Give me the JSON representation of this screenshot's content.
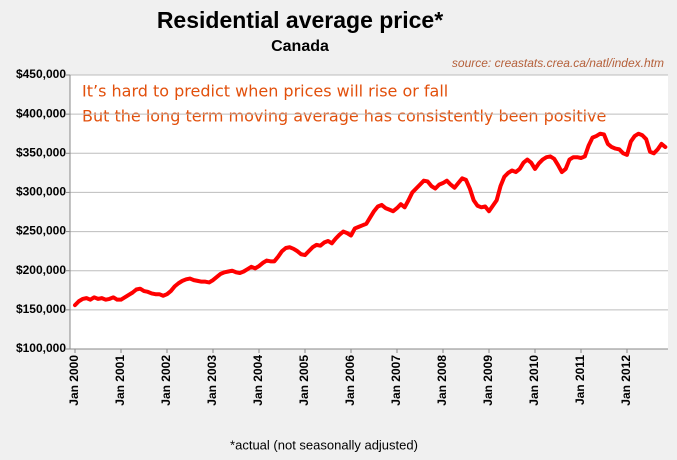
{
  "chart_data": {
    "type": "line",
    "title": "Residential average price*",
    "subtitle": "Canada",
    "source": "source: creastats.crea.ca/natl/index.htm",
    "annotations": [
      "It’s hard to predict when prices will rise or fall",
      "But the long term moving average has consistently been positive"
    ],
    "footnote": "*actual (not seasonally adjusted)",
    "color": "#ff0000",
    "grid": true,
    "categories": [
      "Jan 2000",
      null,
      null,
      null,
      null,
      null,
      null,
      null,
      null,
      null,
      null,
      null,
      "Jan 2001",
      null,
      null,
      null,
      null,
      null,
      null,
      null,
      null,
      null,
      null,
      null,
      "Jan 2002",
      null,
      null,
      null,
      null,
      null,
      null,
      null,
      null,
      null,
      null,
      null,
      "Jan 2003",
      null,
      null,
      null,
      null,
      null,
      null,
      null,
      null,
      null,
      null,
      null,
      "Jan 2004",
      null,
      null,
      null,
      null,
      null,
      null,
      null,
      null,
      null,
      null,
      null,
      "Jan 2005",
      null,
      null,
      null,
      null,
      null,
      null,
      null,
      null,
      null,
      null,
      null,
      "Jan 2006",
      null,
      null,
      null,
      null,
      null,
      null,
      null,
      null,
      null,
      null,
      null,
      "Jan 2007",
      null,
      null,
      null,
      null,
      null,
      null,
      null,
      null,
      null,
      null,
      null,
      "Jan 2008",
      null,
      null,
      null,
      null,
      null,
      null,
      null,
      null,
      null,
      null,
      null,
      "Jan 2009",
      null,
      null,
      null,
      null,
      null,
      null,
      null,
      null,
      null,
      null,
      null,
      "Jan 2010",
      null,
      null,
      null,
      null,
      null,
      null,
      null,
      null,
      null,
      null,
      null,
      "Jan 2011",
      null,
      null,
      null,
      null,
      null,
      null,
      null,
      null,
      null,
      null,
      null,
      "Jan 2012",
      null,
      null,
      null,
      null,
      null,
      null,
      null,
      null,
      null,
      null
    ],
    "values": [
      156000,
      161000,
      164000,
      165000,
      163000,
      166000,
      164000,
      165000,
      163000,
      164000,
      166000,
      163000,
      163000,
      166000,
      169000,
      172000,
      176000,
      177000,
      174000,
      173000,
      171000,
      170000,
      170000,
      168000,
      170000,
      174000,
      180000,
      184000,
      187000,
      189000,
      190000,
      188000,
      187000,
      186000,
      186000,
      185000,
      188000,
      192000,
      196000,
      198000,
      199000,
      200000,
      198000,
      197000,
      199000,
      202000,
      205000,
      203000,
      206000,
      210000,
      213000,
      212000,
      212000,
      218000,
      225000,
      229000,
      230000,
      228000,
      225000,
      221000,
      220000,
      225000,
      230000,
      233000,
      232000,
      236000,
      238000,
      235000,
      241000,
      246000,
      250000,
      248000,
      245000,
      254000,
      256000,
      258000,
      260000,
      268000,
      276000,
      282000,
      284000,
      280000,
      278000,
      276000,
      280000,
      285000,
      281000,
      290000,
      300000,
      305000,
      310000,
      315000,
      314000,
      308000,
      305000,
      310000,
      312000,
      315000,
      310000,
      306000,
      312000,
      318000,
      316000,
      305000,
      290000,
      283000,
      281000,
      282000,
      276000,
      283000,
      290000,
      308000,
      320000,
      325000,
      328000,
      326000,
      330000,
      338000,
      342000,
      338000,
      330000,
      337000,
      342000,
      345000,
      346000,
      343000,
      335000,
      326000,
      330000,
      342000,
      345000,
      345000,
      344000,
      346000,
      360000,
      370000,
      372000,
      375000,
      374000,
      362000,
      358000,
      356000,
      355000,
      350000,
      348000,
      365000,
      372000,
      375000,
      373000,
      368000,
      352000,
      350000,
      355000,
      362000,
      358000
    ],
    "ylim": [
      100000,
      450000
    ],
    "yticks": [
      {
        "value": 100000,
        "label": "$100,000"
      },
      {
        "value": 150000,
        "label": "$150,000"
      },
      {
        "value": 200000,
        "label": "$200,000"
      },
      {
        "value": 250000,
        "label": "$250,000"
      },
      {
        "value": 300000,
        "label": "$300,000"
      },
      {
        "value": 350000,
        "label": "$350,000"
      },
      {
        "value": 400000,
        "label": "$400,000"
      },
      {
        "value": 450000,
        "label": "$450,000"
      }
    ]
  }
}
